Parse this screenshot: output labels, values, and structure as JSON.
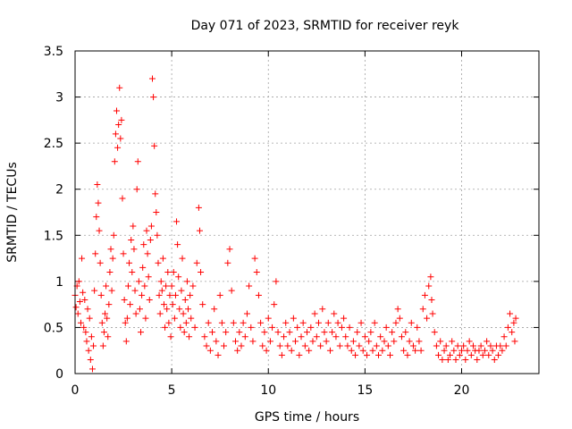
{
  "chart_data": {
    "type": "scatter",
    "title": "Day 071 of 2023, SRMTID for receiver reyk",
    "xlabel": "GPS time / hours",
    "ylabel": "SRMTID / TECUs",
    "xlim": [
      0,
      24
    ],
    "ylim": [
      0,
      3.5
    ],
    "xticks": [
      0,
      5,
      10,
      15,
      20
    ],
    "xtick_labels": [
      "0",
      "5",
      "10",
      "15",
      "20"
    ],
    "yticks": [
      0,
      0.5,
      1,
      1.5,
      2,
      2.5,
      3,
      3.5
    ],
    "ytick_labels": [
      "0",
      "0.5",
      "1",
      "1.5",
      "2",
      "2.5",
      "3",
      "3.5"
    ],
    "grid": true,
    "marker": "plus",
    "color": "#ff0000",
    "series": [
      {
        "name": "SRMTID",
        "points": [
          [
            0.0,
            0.85
          ],
          [
            0.05,
            0.72
          ],
          [
            0.1,
            0.95
          ],
          [
            0.15,
            0.65
          ],
          [
            0.2,
            1.0
          ],
          [
            0.25,
            0.78
          ],
          [
            0.3,
            0.55
          ],
          [
            0.35,
            1.25
          ],
          [
            0.4,
            0.88
          ],
          [
            0.45,
            0.5
          ],
          [
            0.5,
            0.8
          ],
          [
            0.55,
            0.45
          ],
          [
            0.6,
            0.35
          ],
          [
            0.65,
            0.7
          ],
          [
            0.7,
            0.25
          ],
          [
            0.75,
            0.6
          ],
          [
            0.8,
            0.15
          ],
          [
            0.85,
            0.4
          ],
          [
            0.9,
            0.05
          ],
          [
            0.95,
            0.3
          ],
          [
            1.0,
            0.9
          ],
          [
            1.05,
            1.3
          ],
          [
            1.1,
            1.7
          ],
          [
            1.15,
            2.05
          ],
          [
            1.2,
            1.85
          ],
          [
            1.25,
            1.55
          ],
          [
            1.3,
            1.2
          ],
          [
            1.35,
            0.85
          ],
          [
            1.4,
            0.55
          ],
          [
            1.45,
            0.3
          ],
          [
            1.5,
            0.45
          ],
          [
            1.55,
            0.65
          ],
          [
            1.6,
            0.95
          ],
          [
            1.65,
            0.6
          ],
          [
            1.7,
            0.4
          ],
          [
            1.75,
            0.75
          ],
          [
            1.8,
            1.1
          ],
          [
            1.85,
            1.35
          ],
          [
            1.9,
            0.9
          ],
          [
            1.95,
            1.25
          ],
          [
            2.0,
            1.5
          ],
          [
            2.05,
            2.3
          ],
          [
            2.1,
            2.6
          ],
          [
            2.15,
            2.85
          ],
          [
            2.2,
            2.45
          ],
          [
            2.25,
            2.7
          ],
          [
            2.3,
            3.1
          ],
          [
            2.35,
            2.55
          ],
          [
            2.4,
            2.75
          ],
          [
            2.45,
            1.9
          ],
          [
            2.5,
            1.3
          ],
          [
            2.55,
            0.8
          ],
          [
            2.6,
            0.55
          ],
          [
            2.65,
            0.35
          ],
          [
            2.7,
            0.6
          ],
          [
            2.75,
            0.95
          ],
          [
            2.8,
            1.2
          ],
          [
            2.85,
            0.75
          ],
          [
            2.9,
            1.45
          ],
          [
            2.95,
            1.1
          ],
          [
            3.0,
            1.6
          ],
          [
            3.05,
            1.35
          ],
          [
            3.1,
            0.9
          ],
          [
            3.15,
            0.65
          ],
          [
            3.2,
            2.0
          ],
          [
            3.25,
            2.3
          ],
          [
            3.3,
            1.0
          ],
          [
            3.35,
            0.7
          ],
          [
            3.4,
            0.45
          ],
          [
            3.45,
            0.85
          ],
          [
            3.5,
            1.15
          ],
          [
            3.55,
            1.4
          ],
          [
            3.6,
            0.95
          ],
          [
            3.65,
            0.6
          ],
          [
            3.7,
            1.55
          ],
          [
            3.75,
            1.3
          ],
          [
            3.8,
            1.05
          ],
          [
            3.85,
            0.8
          ],
          [
            3.9,
            1.45
          ],
          [
            3.95,
            1.6
          ],
          [
            4.0,
            3.2
          ],
          [
            4.05,
            3.0
          ],
          [
            4.1,
            2.47
          ],
          [
            4.15,
            1.95
          ],
          [
            4.2,
            1.75
          ],
          [
            4.25,
            1.5
          ],
          [
            4.3,
            1.2
          ],
          [
            4.35,
            0.85
          ],
          [
            4.4,
            0.65
          ],
          [
            4.45,
            1.0
          ],
          [
            4.5,
            0.9
          ],
          [
            4.55,
            1.25
          ],
          [
            4.6,
            0.75
          ],
          [
            4.65,
            0.5
          ],
          [
            4.7,
            0.95
          ],
          [
            4.75,
            0.7
          ],
          [
            4.8,
            1.1
          ],
          [
            4.85,
            0.55
          ],
          [
            4.9,
            0.85
          ],
          [
            4.95,
            0.4
          ],
          [
            5.0,
            0.95
          ],
          [
            5.05,
            0.75
          ],
          [
            5.1,
            1.1
          ],
          [
            5.15,
            0.6
          ],
          [
            5.2,
            0.85
          ],
          [
            5.25,
            1.65
          ],
          [
            5.3,
            1.4
          ],
          [
            5.35,
            1.05
          ],
          [
            5.4,
            0.7
          ],
          [
            5.45,
            0.5
          ],
          [
            5.5,
            0.9
          ],
          [
            5.55,
            1.25
          ],
          [
            5.6,
            0.65
          ],
          [
            5.65,
            0.45
          ],
          [
            5.7,
            0.8
          ],
          [
            5.75,
            0.55
          ],
          [
            5.8,
            1.0
          ],
          [
            5.85,
            0.7
          ],
          [
            5.9,
            0.4
          ],
          [
            5.95,
            0.85
          ],
          [
            6.0,
            0.6
          ],
          [
            6.1,
            0.95
          ],
          [
            6.2,
            0.5
          ],
          [
            6.3,
            1.2
          ],
          [
            6.4,
            1.8
          ],
          [
            6.45,
            1.55
          ],
          [
            6.5,
            1.1
          ],
          [
            6.6,
            0.75
          ],
          [
            6.7,
            0.4
          ],
          [
            6.8,
            0.3
          ],
          [
            6.9,
            0.55
          ],
          [
            7.0,
            0.25
          ],
          [
            7.1,
            0.45
          ],
          [
            7.2,
            0.7
          ],
          [
            7.3,
            0.35
          ],
          [
            7.4,
            0.2
          ],
          [
            7.5,
            0.85
          ],
          [
            7.6,
            0.55
          ],
          [
            7.7,
            0.3
          ],
          [
            7.8,
            0.45
          ],
          [
            7.9,
            1.2
          ],
          [
            8.0,
            1.35
          ],
          [
            8.1,
            0.9
          ],
          [
            8.2,
            0.55
          ],
          [
            8.3,
            0.35
          ],
          [
            8.4,
            0.25
          ],
          [
            8.5,
            0.45
          ],
          [
            8.6,
            0.3
          ],
          [
            8.7,
            0.55
          ],
          [
            8.8,
            0.4
          ],
          [
            8.9,
            0.65
          ],
          [
            9.0,
            0.95
          ],
          [
            9.1,
            0.5
          ],
          [
            9.2,
            0.35
          ],
          [
            9.3,
            1.25
          ],
          [
            9.4,
            1.1
          ],
          [
            9.5,
            0.85
          ],
          [
            9.6,
            0.55
          ],
          [
            9.7,
            0.3
          ],
          [
            9.8,
            0.45
          ],
          [
            9.9,
            0.25
          ],
          [
            10.0,
            0.6
          ],
          [
            10.1,
            0.35
          ],
          [
            10.2,
            0.5
          ],
          [
            10.3,
            0.75
          ],
          [
            10.4,
            1.0
          ],
          [
            10.5,
            0.45
          ],
          [
            10.6,
            0.3
          ],
          [
            10.7,
            0.2
          ],
          [
            10.8,
            0.4
          ],
          [
            10.9,
            0.55
          ],
          [
            11.0,
            0.3
          ],
          [
            11.1,
            0.45
          ],
          [
            11.2,
            0.25
          ],
          [
            11.3,
            0.6
          ],
          [
            11.4,
            0.35
          ],
          [
            11.5,
            0.5
          ],
          [
            11.6,
            0.2
          ],
          [
            11.7,
            0.4
          ],
          [
            11.8,
            0.55
          ],
          [
            11.9,
            0.3
          ],
          [
            12.0,
            0.45
          ],
          [
            12.1,
            0.25
          ],
          [
            12.2,
            0.5
          ],
          [
            12.3,
            0.35
          ],
          [
            12.4,
            0.65
          ],
          [
            12.5,
            0.4
          ],
          [
            12.6,
            0.55
          ],
          [
            12.7,
            0.3
          ],
          [
            12.8,
            0.7
          ],
          [
            12.9,
            0.45
          ],
          [
            13.0,
            0.35
          ],
          [
            13.1,
            0.55
          ],
          [
            13.2,
            0.25
          ],
          [
            13.3,
            0.45
          ],
          [
            13.4,
            0.65
          ],
          [
            13.5,
            0.4
          ],
          [
            13.6,
            0.55
          ],
          [
            13.7,
            0.3
          ],
          [
            13.8,
            0.5
          ],
          [
            13.9,
            0.6
          ],
          [
            14.0,
            0.4
          ],
          [
            14.1,
            0.3
          ],
          [
            14.2,
            0.5
          ],
          [
            14.3,
            0.25
          ],
          [
            14.4,
            0.35
          ],
          [
            14.5,
            0.2
          ],
          [
            14.6,
            0.45
          ],
          [
            14.7,
            0.3
          ],
          [
            14.8,
            0.55
          ],
          [
            14.9,
            0.25
          ],
          [
            15.0,
            0.4
          ],
          [
            15.1,
            0.2
          ],
          [
            15.2,
            0.35
          ],
          [
            15.3,
            0.45
          ],
          [
            15.4,
            0.25
          ],
          [
            15.5,
            0.55
          ],
          [
            15.6,
            0.3
          ],
          [
            15.7,
            0.2
          ],
          [
            15.8,
            0.4
          ],
          [
            15.9,
            0.25
          ],
          [
            16.0,
            0.35
          ],
          [
            16.1,
            0.5
          ],
          [
            16.2,
            0.3
          ],
          [
            16.3,
            0.2
          ],
          [
            16.4,
            0.45
          ],
          [
            16.5,
            0.35
          ],
          [
            16.6,
            0.55
          ],
          [
            16.7,
            0.7
          ],
          [
            16.8,
            0.6
          ],
          [
            16.9,
            0.4
          ],
          [
            17.0,
            0.25
          ],
          [
            17.1,
            0.45
          ],
          [
            17.2,
            0.2
          ],
          [
            17.3,
            0.35
          ],
          [
            17.4,
            0.55
          ],
          [
            17.5,
            0.3
          ],
          [
            17.6,
            0.25
          ],
          [
            17.7,
            0.5
          ],
          [
            17.8,
            0.35
          ],
          [
            17.9,
            0.25
          ],
          [
            18.0,
            0.7
          ],
          [
            18.1,
            0.85
          ],
          [
            18.2,
            0.6
          ],
          [
            18.3,
            0.95
          ],
          [
            18.4,
            1.05
          ],
          [
            18.45,
            0.8
          ],
          [
            18.5,
            0.65
          ],
          [
            18.6,
            0.45
          ],
          [
            18.7,
            0.3
          ],
          [
            18.8,
            0.2
          ],
          [
            18.9,
            0.35
          ],
          [
            19.0,
            0.15
          ],
          [
            19.1,
            0.25
          ],
          [
            19.2,
            0.3
          ],
          [
            19.3,
            0.15
          ],
          [
            19.4,
            0.2
          ],
          [
            19.5,
            0.35
          ],
          [
            19.6,
            0.25
          ],
          [
            19.7,
            0.15
          ],
          [
            19.8,
            0.3
          ],
          [
            19.9,
            0.2
          ],
          [
            20.0,
            0.25
          ],
          [
            20.1,
            0.3
          ],
          [
            20.2,
            0.15
          ],
          [
            20.3,
            0.25
          ],
          [
            20.4,
            0.35
          ],
          [
            20.5,
            0.2
          ],
          [
            20.6,
            0.3
          ],
          [
            20.7,
            0.25
          ],
          [
            20.8,
            0.15
          ],
          [
            20.9,
            0.25
          ],
          [
            21.0,
            0.3
          ],
          [
            21.1,
            0.2
          ],
          [
            21.2,
            0.25
          ],
          [
            21.3,
            0.35
          ],
          [
            21.4,
            0.2
          ],
          [
            21.5,
            0.3
          ],
          [
            21.6,
            0.25
          ],
          [
            21.7,
            0.15
          ],
          [
            21.8,
            0.3
          ],
          [
            21.9,
            0.2
          ],
          [
            22.0,
            0.3
          ],
          [
            22.1,
            0.25
          ],
          [
            22.2,
            0.4
          ],
          [
            22.3,
            0.3
          ],
          [
            22.4,
            0.5
          ],
          [
            22.5,
            0.65
          ],
          [
            22.6,
            0.45
          ],
          [
            22.7,
            0.55
          ],
          [
            22.75,
            0.35
          ],
          [
            22.8,
            0.6
          ]
        ]
      }
    ]
  }
}
